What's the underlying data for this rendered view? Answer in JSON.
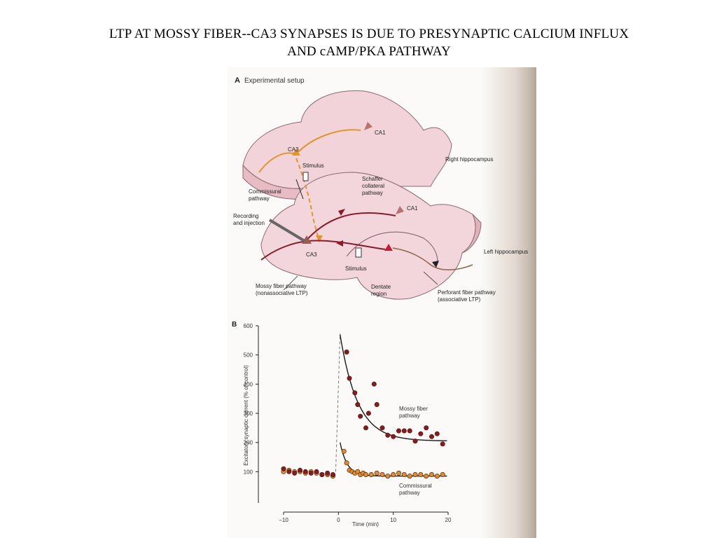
{
  "slide": {
    "title_line1": "LTP AT MOSSY FIBER--CA3 SYNAPSES IS DUE TO PRESYNAPTIC CALCIUM INFLUX",
    "title_line2": "AND cAMP/PKA PATHWAY"
  },
  "panel_a": {
    "label": "A",
    "heading": "Experimental setup",
    "labels": {
      "ca1_right": "CA1",
      "ca3_right": "CA3",
      "stimulus_top": "Stimulus",
      "right_hippocampus": "Right hippocampus",
      "commissural_1": "Commissural",
      "commissural_2": "pathway",
      "schaffer_1": "Schaffer",
      "schaffer_2": "collateral",
      "schaffer_3": "pathway",
      "ca1_left": "CA1",
      "recording_1": "Recording",
      "recording_2": "and injection",
      "ca3_left": "CA3",
      "stimulus_bottom": "Stimulus",
      "left_hippocampus": "Left hippocampus",
      "mossy_1": "Mossy fiber pathway",
      "mossy_2": "(nonassociative LTP)",
      "dentate_1": "Dentate",
      "dentate_2": "region",
      "perforant_1": "Perforant fiber pathway",
      "perforant_2": "(associative LTP)"
    }
  },
  "chart_data": {
    "type": "scatter",
    "panel_label": "B",
    "xlabel": "Time (min)",
    "ylabel": "Excitatory synaptic current (% of control)",
    "xlim": [
      -10,
      20
    ],
    "ylim": [
      0,
      600
    ],
    "xticks": [
      -10,
      0,
      10,
      20
    ],
    "xtick_labels": [
      "−10",
      "0",
      "10",
      "20"
    ],
    "yticks": [
      100,
      200,
      300,
      400,
      500,
      600
    ],
    "ytick_labels": [
      "100",
      "200",
      "300",
      "400",
      "500",
      "600"
    ],
    "grid": false,
    "colors": {
      "mossy": "#8b1a1a",
      "commissural": "#e08a2c",
      "fit": "#1a1a1a",
      "stim_line": "#7a7a7a"
    },
    "series": [
      {
        "name_line1": "Mossy fiber",
        "name_line2": "pathway",
        "x": [
          -10,
          -9,
          -8,
          -7,
          -6,
          -5,
          -4,
          -3,
          -2,
          -1,
          1.5,
          2,
          3,
          3.5,
          4,
          5,
          5.5,
          6.5,
          7,
          8,
          9,
          10,
          11,
          12,
          13,
          14,
          15,
          16,
          17,
          18,
          19
        ],
        "y": [
          110,
          100,
          95,
          105,
          100,
          95,
          100,
          90,
          95,
          90,
          510,
          420,
          370,
          330,
          290,
          250,
          300,
          400,
          330,
          250,
          225,
          220,
          240,
          240,
          240,
          205,
          230,
          250,
          220,
          230,
          195
        ],
        "fit": {
          "baseline": 100,
          "asymptote": 205,
          "peak": 570,
          "tau_min": 3.2
        }
      },
      {
        "name_line1": "Commissural",
        "name_line2": "pathway",
        "x": [
          -10,
          -9,
          -8,
          -7,
          -6,
          -5,
          -4,
          -3,
          -2,
          -1,
          1,
          1.5,
          2,
          2.5,
          3,
          3.5,
          4,
          4.5,
          5,
          6,
          7,
          8,
          9,
          10,
          11,
          12,
          13,
          14,
          15,
          16,
          17,
          18,
          19
        ],
        "y": [
          100,
          105,
          100,
          100,
          95,
          100,
          95,
          90,
          90,
          85,
          170,
          130,
          105,
          100,
          95,
          100,
          90,
          95,
          90,
          90,
          95,
          90,
          85,
          90,
          95,
          90,
          85,
          90,
          90,
          85,
          90,
          85,
          90
        ],
        "fit": {
          "baseline": 100,
          "asymptote": 85,
          "peak": 200,
          "tau_min": 1.3
        }
      }
    ]
  }
}
